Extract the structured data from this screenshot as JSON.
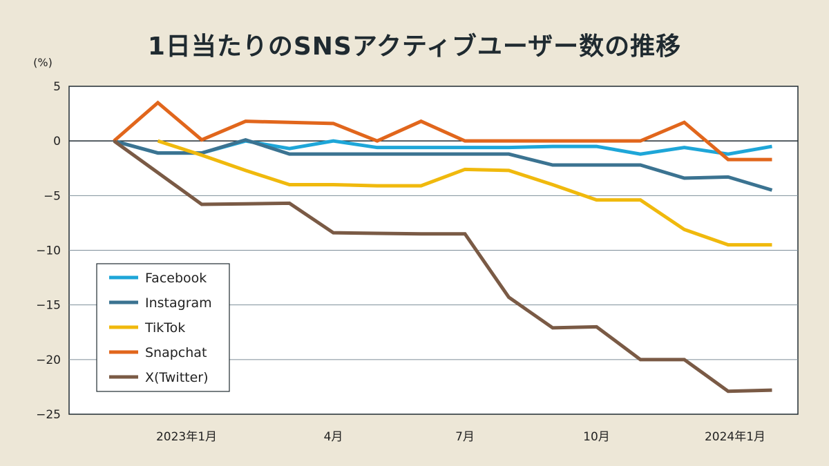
{
  "chart_data": {
    "type": "line",
    "title": "1日当たりのSNSアクティブユーザー数の推移",
    "ylabel": "(%)",
    "xlabel": "",
    "ylim": [
      -25,
      5
    ],
    "yticks": [
      5,
      0,
      -5,
      -10,
      -15,
      -20,
      -25
    ],
    "ytick_labels": [
      "5",
      "0",
      "−5",
      "−10",
      "−15",
      "−20",
      "−25"
    ],
    "x_count": 16,
    "xtick_labels": [
      {
        "index": 2,
        "label": "2023年1月"
      },
      {
        "index": 5,
        "label": "4月"
      },
      {
        "index": 8,
        "label": "7月"
      },
      {
        "index": 11,
        "label": "10月"
      },
      {
        "index": 14,
        "label": "2024年1月"
      }
    ],
    "grid": true,
    "legend_position": "bottom-left",
    "series": [
      {
        "name": "Facebook",
        "color": "#1ea6d8",
        "start": 0,
        "values": [
          0,
          -1.1,
          -1.1,
          0,
          -0.7,
          0,
          -0.6,
          -0.6,
          -0.6,
          -0.6,
          -0.5,
          -0.5,
          -1.2,
          -0.6,
          -1.2,
          -0.5
        ]
      },
      {
        "name": "Instagram",
        "color": "#3b7391",
        "start": 0,
        "values": [
          0,
          -1.1,
          -1.1,
          0.1,
          -1.2,
          -1.2,
          -1.2,
          -1.2,
          -1.2,
          -1.2,
          -2.2,
          -2.2,
          -2.2,
          -3.4,
          -3.3,
          -4.5
        ]
      },
      {
        "name": "TikTok",
        "color": "#f0b90d",
        "start": 1,
        "values": [
          0,
          -1.3,
          -2.7,
          -4.0,
          -4.0,
          -4.1,
          -4.1,
          -2.6,
          -2.7,
          -4.0,
          -5.4,
          -5.4,
          -8.1,
          -9.5,
          -9.5
        ]
      },
      {
        "name": "Snapchat",
        "color": "#e1661c",
        "start": 0,
        "values": [
          0,
          3.5,
          0.1,
          1.8,
          1.7,
          1.6,
          0,
          1.8,
          0,
          0,
          0,
          0,
          0,
          1.7,
          -1.7,
          -1.7
        ]
      },
      {
        "name": "X(Twitter)",
        "color": "#7a5a45",
        "start": 0,
        "values": [
          0,
          -2.9,
          -5.8,
          -5.75,
          -5.7,
          -8.4,
          -8.45,
          -8.5,
          -8.5,
          -14.3,
          -17.1,
          -17.0,
          -20.0,
          -20.0,
          -22.9,
          -22.8
        ]
      }
    ]
  }
}
